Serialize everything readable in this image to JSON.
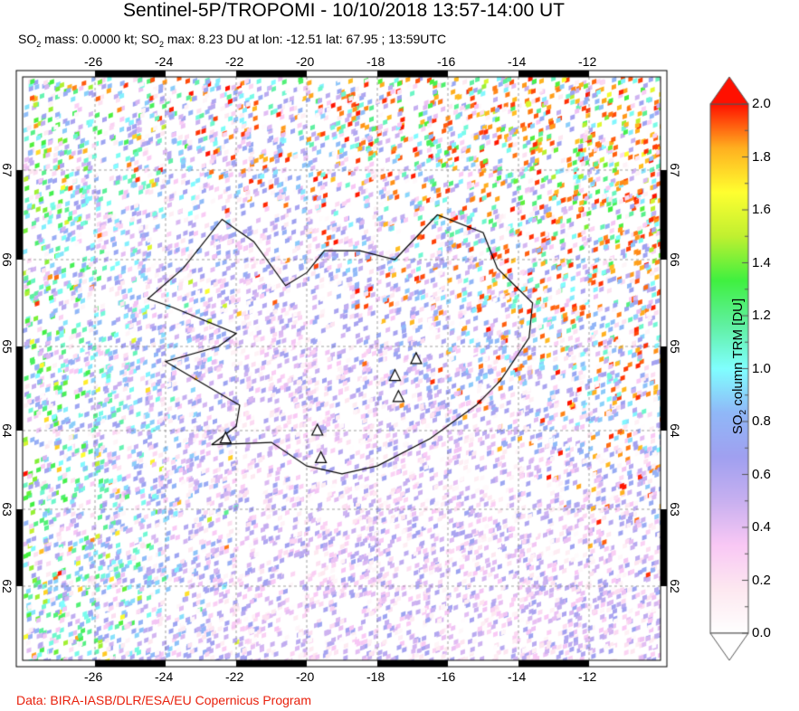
{
  "title": "Sentinel-5P/TROPOMI - 10/10/2018 13:57-14:00 UT",
  "subtitle": {
    "mass_prefix": "SO",
    "mass_sub": "2",
    "mass_text": " mass: 0.0000 kt; SO",
    "max_sub": "2",
    "max_text": " max: 8.23 DU at lon: -12.51 lat: 67.95 ; 13:59UTC"
  },
  "map": {
    "lon_ticks": [
      -26,
      -24,
      -22,
      -20,
      -18,
      -16,
      -14,
      -12
    ],
    "lat_ticks": [
      67,
      66,
      65,
      64,
      63,
      62
    ],
    "lon_tick_labels": [
      "-26",
      "-24",
      "-22",
      "-20",
      "-18",
      "-16",
      "-14",
      "-12"
    ],
    "lat_tick_labels": [
      "67",
      "66",
      "65",
      "64",
      "63",
      "62"
    ],
    "grid": "dashed",
    "coastline": [
      [
        -22.7,
        63.82
      ],
      [
        -22.0,
        64.05
      ],
      [
        -21.9,
        64.3
      ],
      [
        -22.5,
        64.45
      ],
      [
        -24.0,
        64.82
      ],
      [
        -22.5,
        65.0
      ],
      [
        -22.0,
        65.15
      ],
      [
        -23.8,
        65.45
      ],
      [
        -24.5,
        65.55
      ],
      [
        -23.5,
        65.9
      ],
      [
        -22.4,
        66.45
      ],
      [
        -21.5,
        66.2
      ],
      [
        -20.6,
        65.7
      ],
      [
        -20.0,
        65.85
      ],
      [
        -19.5,
        66.1
      ],
      [
        -18.5,
        66.1
      ],
      [
        -17.5,
        66.0
      ],
      [
        -16.3,
        66.5
      ],
      [
        -15.0,
        66.3
      ],
      [
        -14.6,
        65.9
      ],
      [
        -13.6,
        65.5
      ],
      [
        -13.7,
        65.1
      ],
      [
        -14.5,
        64.6
      ],
      [
        -15.2,
        64.3
      ],
      [
        -16.5,
        63.9
      ],
      [
        -18.0,
        63.55
      ],
      [
        -19.0,
        63.45
      ],
      [
        -20.0,
        63.55
      ],
      [
        -21.0,
        63.85
      ],
      [
        -22.7,
        63.82
      ]
    ],
    "volcanoes": [
      [
        -22.3,
        63.9
      ],
      [
        -19.7,
        64.0
      ],
      [
        -19.6,
        63.65
      ],
      [
        -17.5,
        64.65
      ],
      [
        -17.4,
        64.4
      ],
      [
        -16.9,
        64.85
      ]
    ]
  },
  "colorbar": {
    "label_prefix": "SO",
    "label_sub": "2",
    "label_text": " column TRM [DU]",
    "range": [
      0.0,
      2.0
    ],
    "tick_labels": [
      "2.0",
      "1.8",
      "1.6",
      "1.4",
      "1.2",
      "1.0",
      "0.8",
      "0.6",
      "0.4",
      "0.2",
      "0.0"
    ],
    "colors": [
      "#ffffff",
      "#fde8f0",
      "#f9c8f5",
      "#c8b0f0",
      "#a0a0f0",
      "#90b8f8",
      "#80ffff",
      "#60f0a0",
      "#40f040",
      "#c0f030",
      "#ffff30",
      "#ffb020",
      "#ff1000"
    ]
  },
  "credit": "Data: BIRA-IASB/DLR/ESA/EU Copernicus Program"
}
